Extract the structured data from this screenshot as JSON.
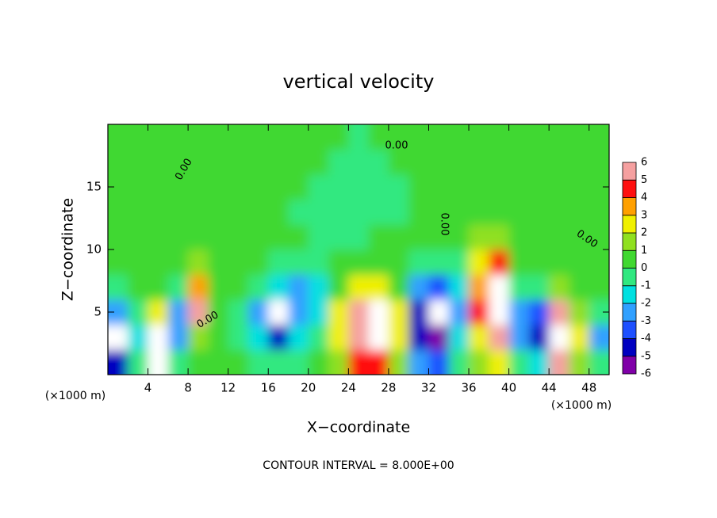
{
  "chart_data": {
    "type": "heatmap",
    "title": "vertical velocity",
    "x_label": "X−coordinate",
    "y_label": "Z−coordinate",
    "x_unit_label": "(×1000 m)",
    "footer": "CONTOUR INTERVAL = 8.000E+00",
    "contour_label": "0.00",
    "x": [
      1,
      3,
      5,
      7,
      9,
      11,
      13,
      15,
      17,
      19,
      21,
      23,
      25,
      27,
      29,
      31,
      33,
      35,
      37,
      39,
      41,
      43,
      45,
      47,
      49
    ],
    "y": [
      1,
      3,
      5,
      7,
      9,
      11,
      13,
      15,
      17,
      19
    ],
    "values": [
      [
        -4.5,
        -1,
        6.5,
        -1,
        0.5,
        0,
        0.3,
        -0.5,
        -1,
        -0.5,
        0,
        1.5,
        4,
        4.5,
        1,
        -3,
        -3.5,
        -1,
        1,
        2,
        -1,
        -2,
        5,
        1,
        -1
      ],
      [
        -7,
        -2,
        7,
        -3,
        1,
        0,
        -1,
        -2,
        -5,
        -2,
        -1,
        2,
        5,
        7,
        2,
        -5,
        -6,
        -2,
        2,
        5,
        -3,
        -5,
        7,
        2,
        -3
      ],
      [
        -3,
        -1,
        2,
        -3,
        5,
        0.5,
        -1,
        -3,
        -7,
        -3,
        -2,
        2,
        5,
        7,
        2,
        -5,
        -6.5,
        -2.5,
        4,
        7,
        -3,
        -4,
        5,
        1,
        -1
      ],
      [
        -0.5,
        0,
        0.5,
        -1,
        3,
        0.5,
        0,
        -1,
        -2,
        -2.5,
        -1.5,
        0.5,
        2,
        2,
        0.5,
        -3,
        -3.5,
        -2,
        3.5,
        7,
        -0.5,
        -1,
        1,
        0.5,
        0
      ],
      [
        0.5,
        0.5,
        0.5,
        0.5,
        1,
        0.5,
        0.5,
        0,
        -0.5,
        -1,
        -0.5,
        0,
        0.5,
        0.5,
        0,
        -0.5,
        -0.5,
        -0.5,
        2,
        4,
        0.5,
        0.5,
        0.5,
        0.3,
        0.3
      ],
      [
        0.5,
        0.5,
        0.5,
        0.5,
        0.5,
        0.5,
        0.3,
        0.3,
        0.2,
        0,
        -0.5,
        -0.5,
        -0.3,
        0,
        0,
        0,
        0,
        0.3,
        1,
        1,
        0.5,
        0.5,
        0.5,
        0.3,
        0.3
      ],
      [
        0.5,
        0.5,
        0.8,
        0.5,
        0.5,
        0.3,
        0.3,
        0.3,
        0,
        -0.3,
        -0.5,
        -0.8,
        -0.5,
        -0.3,
        -0.2,
        0,
        0.3,
        0.5,
        0.5,
        0.5,
        0.5,
        0.5,
        0.5,
        0.5,
        0.5
      ],
      [
        0.5,
        0.5,
        0.5,
        0.5,
        0.5,
        0.5,
        0.5,
        0.3,
        0.2,
        0,
        -0.3,
        -0.5,
        -0.8,
        -0.5,
        -0.3,
        0,
        0.3,
        0.3,
        0.5,
        0.5,
        0.5,
        0.5,
        0.5,
        0.5,
        0.8
      ],
      [
        0.5,
        0.5,
        0.5,
        0.5,
        0.3,
        0.3,
        0.5,
        0.5,
        0.3,
        0.2,
        0,
        -0.3,
        -0.8,
        -0.3,
        0,
        0.2,
        0.3,
        0.3,
        0.3,
        0.5,
        0.5,
        0.5,
        0.5,
        0.5,
        0.5
      ],
      [
        0.5,
        0.5,
        0.5,
        0.5,
        0.5,
        0.5,
        0.5,
        0.3,
        0.3,
        0.3,
        0.3,
        0,
        -0.3,
        0,
        0.3,
        0.3,
        0.5,
        0.5,
        0.5,
        0.5,
        0.5,
        0.5,
        0.5,
        0.5,
        0.5
      ]
    ],
    "xlim": [
      0,
      50
    ],
    "ylim": [
      0,
      20
    ],
    "xticks": [
      4,
      8,
      12,
      16,
      20,
      24,
      28,
      32,
      36,
      40,
      44,
      48
    ],
    "yticks": [
      5,
      10,
      15
    ],
    "colorbar_ticks": [
      -6,
      -5,
      -4,
      -3,
      -2,
      -1,
      0,
      1,
      2,
      3,
      4,
      5,
      6
    ],
    "colors": [
      "#8000a8",
      "#0000c0",
      "#1e50ff",
      "#30a0ff",
      "#00e0e0",
      "#30e880",
      "#40d830",
      "#90e020",
      "#f0f000",
      "#ffa000",
      "#ff1010",
      "#f5a0a0"
    ],
    "out_of_range_color": "#ffffff"
  }
}
